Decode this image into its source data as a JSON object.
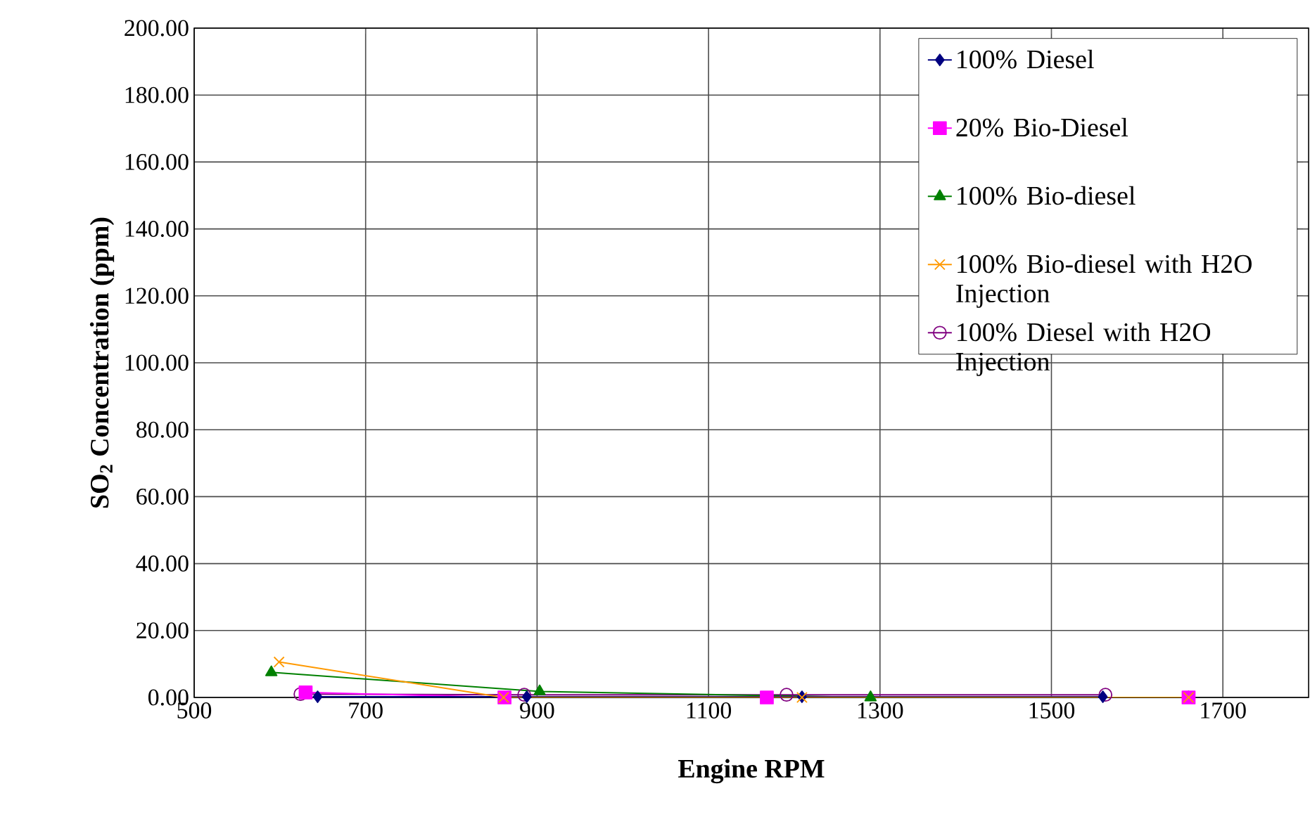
{
  "chart_data": {
    "type": "line",
    "xlabel": "Engine RPM",
    "ylabel": "SO$_{2}$ Concentration (ppm)",
    "xlim": [
      500,
      1800
    ],
    "xticks": [
      500,
      700,
      900,
      1100,
      1300,
      1500,
      1700
    ],
    "ylim": [
      0,
      200
    ],
    "yticks": [
      {
        "value": 0,
        "label": "0.00"
      },
      {
        "value": 20,
        "label": "20.00"
      },
      {
        "value": 40,
        "label": "40.00"
      },
      {
        "value": 60,
        "label": "60.00"
      },
      {
        "value": 80,
        "label": "80.00"
      },
      {
        "value": 100,
        "label": "100.00"
      },
      {
        "value": 120,
        "label": "120.00"
      },
      {
        "value": 140,
        "label": "140.00"
      },
      {
        "value": 160,
        "label": "160.00"
      },
      {
        "value": 180,
        "label": "180.00"
      },
      {
        "value": 200,
        "label": "200.00"
      }
    ],
    "grid": true,
    "legend": "top right",
    "line_style": "solid",
    "series": [
      {
        "name": "100% Diesel",
        "color": "#000080",
        "marker": "diamond",
        "x": [
          644,
          888,
          1209,
          1560
        ],
        "values": [
          0.2,
          0.2,
          0.2,
          0.2
        ]
      },
      {
        "name": "20% Bio-Diesel",
        "color": "#ff00ff",
        "marker": "square",
        "x": [
          630,
          862,
          1168,
          1660
        ],
        "values": [
          1.5,
          0,
          0,
          0
        ]
      },
      {
        "name": "100% Bio-diesel",
        "color": "#008000",
        "marker": "triangle",
        "x": [
          590,
          903,
          1289,
          1660
        ],
        "values": [
          7.5,
          1.8,
          0,
          0
        ]
      },
      {
        "name": "100% Bio-diesel with H2O Injection",
        "color": "#ff9900",
        "marker": "cross",
        "x": [
          599,
          861,
          1209,
          1660
        ],
        "values": [
          10.6,
          0,
          0,
          0
        ]
      },
      {
        "name": "100% Diesel with H2O Injection",
        "color": "#800080",
        "marker": "circle",
        "x": [
          624,
          885,
          1191,
          1563
        ],
        "values": [
          1.0,
          0.8,
          0.8,
          0.8
        ]
      }
    ]
  }
}
